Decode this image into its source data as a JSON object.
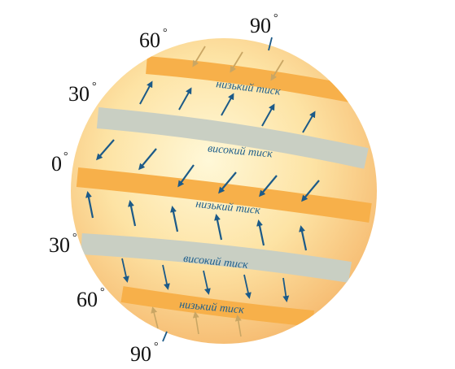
{
  "latitude_labels": {
    "north_pole": "90",
    "north_60": "60",
    "north_30": "30",
    "equator": "0",
    "south_30": "30",
    "south_60": "60",
    "south_pole": "90",
    "degree_sign": "°"
  },
  "zones": {
    "north_low": "низький тиск",
    "north_high": "високий тиск",
    "equator_low": "низький тиск",
    "south_high": "високий тиск",
    "south_low": "низький тиск"
  },
  "colors": {
    "globe_center": "#fff8d8",
    "globe_mid": "#fde3a4",
    "globe_edge": "#f6bc72",
    "low_band": "#f7b04a",
    "high_band": "#c9cfc3",
    "label_text": "#1f5f8c",
    "wind_arrow": "#1c5a88",
    "polar_arrow": "#c9a664"
  }
}
